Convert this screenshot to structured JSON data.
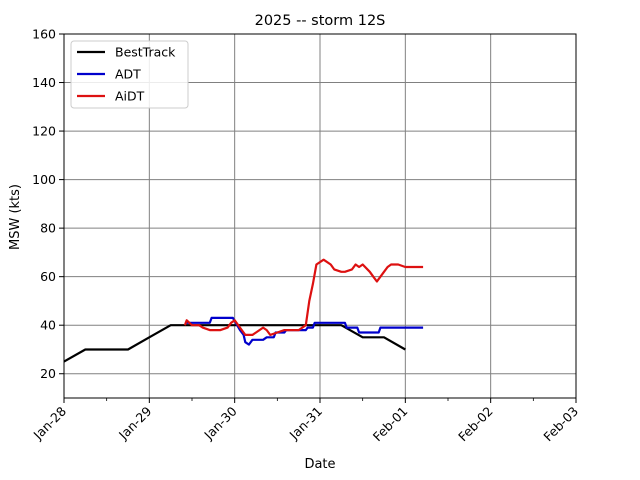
{
  "chart_data": {
    "type": "line",
    "title": "2025 -- storm 12S",
    "xlabel": "Date",
    "ylabel": "MSW (kts)",
    "xlim": [
      "2025-01-28",
      "2025-02-03"
    ],
    "ylim": [
      10,
      160
    ],
    "x_ticks": [
      "Jan-28",
      "Jan-29",
      "Jan-30",
      "Jan-31",
      "Feb-01",
      "Feb-02",
      "Feb-03"
    ],
    "y_ticks": [
      20,
      40,
      60,
      80,
      100,
      120,
      140,
      160
    ],
    "grid": true,
    "legend": "top-left",
    "series": [
      {
        "name": "BestTrack",
        "color": "#000000",
        "points": [
          [
            "2025-01-28 00:00",
            25
          ],
          [
            "2025-01-28 06:00",
            30
          ],
          [
            "2025-01-28 12:00",
            30
          ],
          [
            "2025-01-28 18:00",
            30
          ],
          [
            "2025-01-29 00:00",
            35
          ],
          [
            "2025-01-29 06:00",
            40
          ],
          [
            "2025-01-29 12:00",
            40
          ],
          [
            "2025-01-29 18:00",
            40
          ],
          [
            "2025-01-30 00:00",
            40
          ],
          [
            "2025-01-30 06:00",
            40
          ],
          [
            "2025-01-30 12:00",
            40
          ],
          [
            "2025-01-30 18:00",
            40
          ],
          [
            "2025-01-31 00:00",
            40
          ],
          [
            "2025-01-31 06:00",
            40
          ],
          [
            "2025-01-31 12:00",
            35
          ],
          [
            "2025-01-31 18:00",
            35
          ],
          [
            "2025-02-01 00:00",
            30
          ]
        ]
      },
      {
        "name": "ADT",
        "color": "#0000cc",
        "points": [
          [
            "2025-01-29 10:00",
            41
          ],
          [
            "2025-01-29 17:00",
            41
          ],
          [
            "2025-01-29 17:30",
            43
          ],
          [
            "2025-01-29 23:30",
            43
          ],
          [
            "2025-01-30 01:30",
            38
          ],
          [
            "2025-01-30 02:30",
            36
          ],
          [
            "2025-01-30 03:00",
            33
          ],
          [
            "2025-01-30 04:00",
            32
          ],
          [
            "2025-01-30 05:00",
            34
          ],
          [
            "2025-01-30 08:00",
            34
          ],
          [
            "2025-01-30 09:00",
            35
          ],
          [
            "2025-01-30 11:00",
            35
          ],
          [
            "2025-01-30 11:30",
            37
          ],
          [
            "2025-01-30 14:00",
            37
          ],
          [
            "2025-01-30 14:30",
            38
          ],
          [
            "2025-01-30 20:00",
            38
          ],
          [
            "2025-01-30 20:30",
            39
          ],
          [
            "2025-01-30 22:00",
            39
          ],
          [
            "2025-01-30 22:30",
            41
          ],
          [
            "2025-01-31 07:00",
            41
          ],
          [
            "2025-01-31 07:30",
            39
          ],
          [
            "2025-01-31 10:30",
            39
          ],
          [
            "2025-01-31 11:00",
            37
          ],
          [
            "2025-01-31 16:30",
            37
          ],
          [
            "2025-01-31 17:00",
            39
          ],
          [
            "2025-02-01 05:00",
            39
          ]
        ]
      },
      {
        "name": "AiDT",
        "color": "#dd1111",
        "points": [
          [
            "2025-01-29 10:00",
            40
          ],
          [
            "2025-01-29 10:30",
            42
          ],
          [
            "2025-01-29 12:00",
            40
          ],
          [
            "2025-01-29 14:00",
            40
          ],
          [
            "2025-01-29 15:00",
            39
          ],
          [
            "2025-01-29 17:00",
            38
          ],
          [
            "2025-01-29 20:00",
            38
          ],
          [
            "2025-01-29 22:00",
            39
          ],
          [
            "2025-01-29 23:00",
            41
          ],
          [
            "2025-01-30 00:00",
            42
          ],
          [
            "2025-01-30 01:00",
            40
          ],
          [
            "2025-01-30 02:00",
            38
          ],
          [
            "2025-01-30 03:00",
            36
          ],
          [
            "2025-01-30 05:00",
            36
          ],
          [
            "2025-01-30 06:00",
            37
          ],
          [
            "2025-01-30 08:00",
            39
          ],
          [
            "2025-01-30 09:00",
            38
          ],
          [
            "2025-01-30 10:00",
            36
          ],
          [
            "2025-01-30 12:00",
            37
          ],
          [
            "2025-01-30 14:00",
            38
          ],
          [
            "2025-01-30 16:00",
            38
          ],
          [
            "2025-01-30 18:00",
            38
          ],
          [
            "2025-01-30 20:00",
            40
          ],
          [
            "2025-01-30 21:00",
            50
          ],
          [
            "2025-01-30 22:00",
            57
          ],
          [
            "2025-01-30 23:00",
            65
          ],
          [
            "2025-01-31 01:00",
            67
          ],
          [
            "2025-01-31 03:00",
            65
          ],
          [
            "2025-01-31 04:00",
            63
          ],
          [
            "2025-01-31 06:00",
            62
          ],
          [
            "2025-01-31 07:00",
            62
          ],
          [
            "2025-01-31 09:00",
            63
          ],
          [
            "2025-01-31 10:00",
            65
          ],
          [
            "2025-01-31 11:00",
            64
          ],
          [
            "2025-01-31 12:00",
            65
          ],
          [
            "2025-01-31 14:00",
            62
          ],
          [
            "2025-01-31 15:00",
            60
          ],
          [
            "2025-01-31 16:00",
            58
          ],
          [
            "2025-01-31 17:00",
            60
          ],
          [
            "2025-01-31 19:00",
            64
          ],
          [
            "2025-01-31 20:00",
            65
          ],
          [
            "2025-01-31 22:00",
            65
          ],
          [
            "2025-02-01 00:00",
            64
          ],
          [
            "2025-02-01 02:00",
            64
          ],
          [
            "2025-02-01 04:00",
            64
          ],
          [
            "2025-02-01 05:00",
            64
          ]
        ]
      }
    ]
  }
}
